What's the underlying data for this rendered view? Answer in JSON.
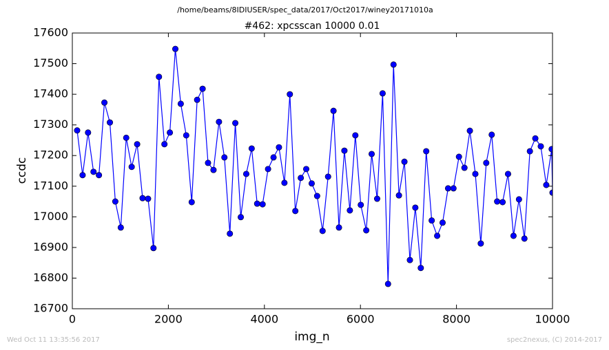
{
  "chart_data": {
    "type": "line",
    "header": "/home/beams/8IDIUSER/spec_data/2017/Oct2017/winey20171010a",
    "title": "#462: xpcsscan 10000 0.01",
    "x_label": "img_n",
    "y_label": "ccdc",
    "footer_left": "Wed Oct 11 13:35:56 2017",
    "footer_right": "spec2nexus, (C) 2014-2017",
    "xlim": [
      0,
      10000
    ],
    "ylim": [
      16700,
      17600
    ],
    "xticks": [
      0,
      2000,
      4000,
      6000,
      8000,
      10000
    ],
    "yticks": [
      16700,
      16800,
      16900,
      17000,
      17100,
      17200,
      17300,
      17400,
      17500,
      17600
    ],
    "color": "#0000ff",
    "marker": "circle",
    "grid": false,
    "x": [
      100,
      214,
      327,
      441,
      554,
      668,
      782,
      895,
      1009,
      1122,
      1236,
      1350,
      1463,
      1577,
      1690,
      1804,
      1918,
      2031,
      2145,
      2258,
      2372,
      2486,
      2599,
      2713,
      2826,
      2940,
      3054,
      3167,
      3281,
      3394,
      3508,
      3622,
      3735,
      3849,
      3962,
      4076,
      4190,
      4303,
      4417,
      4530,
      4644,
      4758,
      4871,
      4985,
      5098,
      5212,
      5326,
      5439,
      5553,
      5666,
      5780,
      5894,
      6007,
      6121,
      6234,
      6348,
      6462,
      6575,
      6689,
      6802,
      6916,
      7030,
      7143,
      7257,
      7370,
      7484,
      7598,
      7711,
      7825,
      7938,
      8052,
      8166,
      8279,
      8393,
      8506,
      8620,
      8734,
      8847,
      8961,
      9074,
      9188,
      9302,
      9415,
      9529,
      9642,
      9756,
      9870,
      9983,
      10000
    ],
    "values": [
      17282,
      17136,
      17275,
      17147,
      17136,
      17373,
      17308,
      17050,
      16965,
      17258,
      17163,
      17237,
      17061,
      17059,
      16898,
      17457,
      17237,
      17275,
      17548,
      17369,
      17266,
      17048,
      17382,
      17418,
      17176,
      17153,
      17310,
      17194,
      16945,
      17306,
      16999,
      17140,
      17223,
      17043,
      17041,
      17156,
      17194,
      17227,
      17111,
      17400,
      17019,
      17127,
      17156,
      17109,
      17068,
      16954,
      17131,
      17346,
      16965,
      17216,
      17021,
      17266,
      17039,
      16956,
      17205,
      17059,
      17403,
      16781,
      17497,
      17070,
      17180,
      16859,
      17030,
      16833,
      17214,
      16988,
      16938,
      16981,
      17093,
      17093,
      17196,
      17160,
      17281,
      17140,
      16913,
      17176,
      17268,
      17050,
      17048,
      17140,
      16938,
      17057,
      16929,
      17214,
      17256,
      17230,
      17104,
      17221,
      17079
    ]
  }
}
